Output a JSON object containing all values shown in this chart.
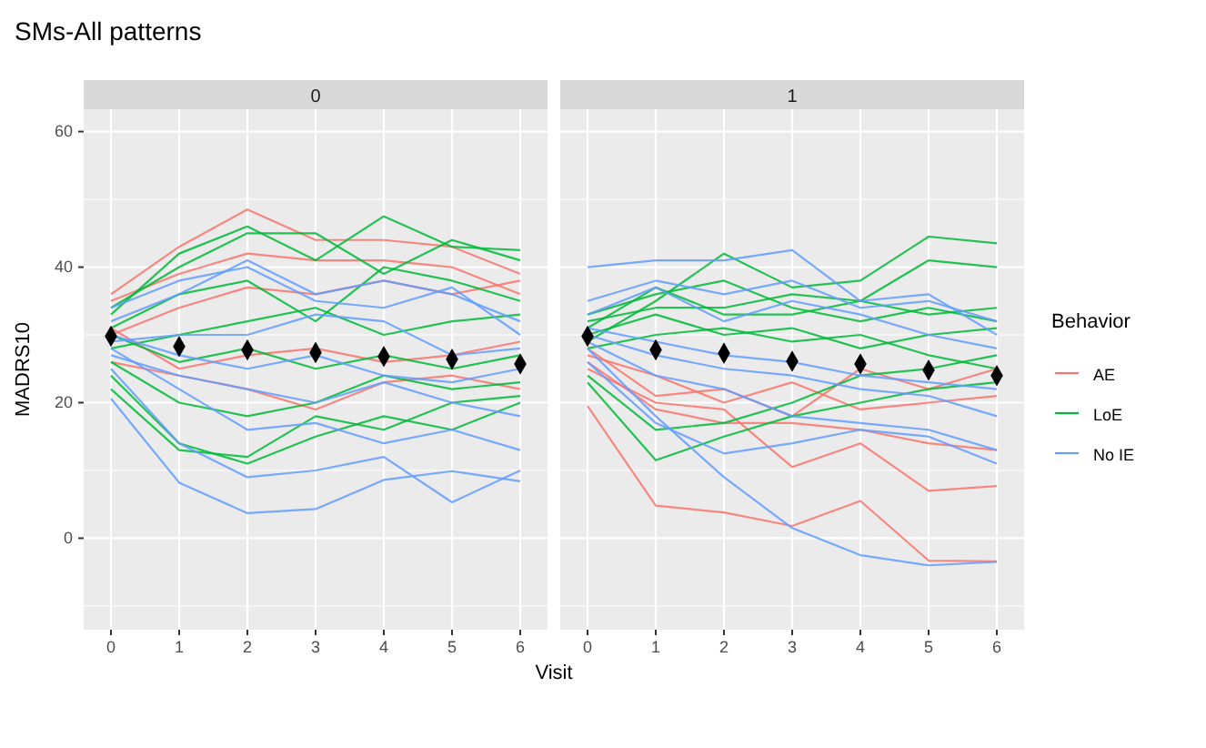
{
  "chart_data": [
    {
      "type": "line",
      "title": "SMs-All patterns",
      "subtitle": "0",
      "xlabel": "Visit",
      "ylabel": "MADRS10",
      "x": [
        0,
        1,
        2,
        3,
        4,
        5,
        6
      ],
      "xlim": [
        -0.4,
        6.4
      ],
      "xticks": [
        0,
        1,
        2,
        3,
        4,
        5,
        6
      ],
      "ylim": [
        -13.5,
        63.3
      ],
      "yticks": [
        0,
        20,
        40,
        60
      ],
      "grid": true,
      "legend": "right",
      "series": [
        {
          "name": "AE",
          "color": "#f8766d",
          "values": [
            36,
            43,
            48.5,
            44,
            44,
            43,
            39
          ]
        },
        {
          "color": "#f8766d",
          "values": [
            35,
            39,
            42,
            41,
            41,
            40,
            36
          ]
        },
        {
          "color": "#f8766d",
          "values": [
            30,
            34,
            37,
            36,
            38,
            36,
            38
          ]
        },
        {
          "color": "#f8766d",
          "values": [
            26,
            24,
            22,
            19,
            23,
            24,
            22
          ]
        },
        {
          "color": "#f8766d",
          "values": [
            31,
            25,
            27,
            28,
            26,
            27,
            29
          ]
        },
        {
          "name": "LoE",
          "color": "#00ba38",
          "values": [
            33,
            42,
            46,
            41,
            47.5,
            43,
            42.5
          ]
        },
        {
          "color": "#00ba38",
          "values": [
            34,
            40,
            45,
            45,
            39,
            44,
            41
          ]
        },
        {
          "color": "#00ba38",
          "values": [
            31,
            36,
            38,
            32,
            40,
            38,
            35
          ]
        },
        {
          "color": "#00ba38",
          "values": [
            28,
            30,
            32,
            34,
            30,
            32,
            33
          ]
        },
        {
          "color": "#00ba38",
          "values": [
            24,
            14,
            11,
            15,
            18,
            16,
            20
          ]
        },
        {
          "color": "#00ba38",
          "values": [
            26,
            20,
            18,
            20,
            24,
            22,
            23
          ]
        },
        {
          "color": "#00ba38",
          "values": [
            30,
            26,
            28,
            25,
            27,
            25,
            27
          ]
        },
        {
          "color": "#00ba38",
          "values": [
            22,
            13,
            12,
            18,
            16,
            20,
            21
          ]
        },
        {
          "name": "No IE",
          "color": "#619cff",
          "values": [
            20.6,
            8.2,
            3.7,
            4.3,
            8.6,
            9.9,
            8.4
          ]
        },
        {
          "color": "#619cff",
          "values": [
            25,
            14,
            9,
            10,
            12,
            5.3,
            10
          ]
        },
        {
          "color": "#619cff",
          "values": [
            32,
            36,
            41,
            36,
            38,
            36,
            32
          ]
        },
        {
          "color": "#619cff",
          "values": [
            29,
            30,
            30,
            33,
            32,
            27,
            28
          ]
        },
        {
          "color": "#619cff",
          "values": [
            27,
            24,
            22,
            20,
            23,
            20,
            18
          ]
        },
        {
          "color": "#619cff",
          "values": [
            30,
            27,
            25,
            27,
            24,
            23,
            25
          ]
        },
        {
          "color": "#619cff",
          "values": [
            28,
            22,
            16,
            17,
            14,
            16,
            13
          ]
        },
        {
          "color": "#619cff",
          "values": [
            34,
            38,
            40,
            35,
            34,
            37,
            30
          ]
        },
        {
          "type": "scatter",
          "marker": "diamond",
          "color": "#000000",
          "values": [
            29.8,
            28.3,
            27.8,
            27.4,
            26.8,
            26.4,
            25.7
          ]
        }
      ]
    },
    {
      "type": "line",
      "subtitle": "1",
      "legend_title": "Behavior",
      "x": [
        0,
        1,
        2,
        3,
        4,
        5,
        6
      ],
      "xlim": [
        -0.4,
        6.4
      ],
      "xticks": [
        0,
        1,
        2,
        3,
        4,
        5,
        6
      ],
      "ylim": [
        -13.5,
        63.3
      ],
      "yticks": [
        0,
        20,
        40,
        60
      ],
      "grid": true,
      "legend": "right",
      "tick_labels": "x",
      "series": [
        {
          "name": "AE",
          "color": "#f8766d",
          "values": [
            19.5,
            4.8,
            3.8,
            1.8,
            5.5,
            -3.3,
            -3.4
          ]
        },
        {
          "color": "#f8766d",
          "values": [
            25,
            20,
            19,
            10.5,
            14,
            7,
            7.7
          ]
        },
        {
          "color": "#f8766d",
          "values": [
            28,
            21,
            22,
            18,
            25,
            22,
            25
          ]
        },
        {
          "color": "#f8766d",
          "values": [
            26,
            19,
            17,
            17,
            16,
            14,
            13
          ]
        },
        {
          "color": "#f8766d",
          "values": [
            27,
            24,
            20,
            23,
            19,
            20,
            21
          ]
        },
        {
          "name": "LoE",
          "color": "#00ba38",
          "values": [
            29,
            35,
            42,
            37,
            38,
            44.5,
            43.5
          ]
        },
        {
          "color": "#00ba38",
          "values": [
            32,
            34,
            34,
            36,
            35,
            41,
            40
          ]
        },
        {
          "color": "#00ba38",
          "values": [
            31,
            37,
            33,
            33,
            35,
            33,
            34
          ]
        },
        {
          "color": "#00ba38",
          "values": [
            23,
            11.5,
            15,
            18,
            20,
            22,
            23
          ]
        },
        {
          "color": "#00ba38",
          "values": [
            28,
            30,
            31,
            29,
            30,
            27,
            25
          ]
        },
        {
          "color": "#00ba38",
          "values": [
            33,
            36,
            38,
            34,
            32,
            34,
            32
          ]
        },
        {
          "color": "#00ba38",
          "values": [
            24,
            16,
            17,
            20,
            24,
            25,
            27
          ]
        },
        {
          "color": "#00ba38",
          "values": [
            30,
            33,
            30,
            31,
            28,
            30,
            31
          ]
        },
        {
          "name": "No IE",
          "color": "#619cff",
          "values": [
            40,
            41,
            41,
            42.5,
            35,
            36,
            30
          ]
        },
        {
          "color": "#619cff",
          "values": [
            28,
            18,
            9,
            1.5,
            -2.5,
            -4,
            -3.5
          ]
        },
        {
          "color": "#619cff",
          "values": [
            26,
            17,
            12.5,
            14,
            16,
            15,
            11
          ]
        },
        {
          "color": "#619cff",
          "values": [
            33,
            37,
            32,
            35,
            33,
            30,
            28
          ]
        },
        {
          "color": "#619cff",
          "values": [
            30,
            27,
            25,
            24,
            22,
            21,
            18
          ]
        },
        {
          "color": "#619cff",
          "values": [
            35,
            38,
            36,
            38,
            34,
            35,
            32
          ]
        },
        {
          "color": "#619cff",
          "values": [
            29,
            24,
            22,
            18,
            17,
            16,
            13
          ]
        },
        {
          "color": "#619cff",
          "values": [
            31,
            29,
            27,
            26,
            24,
            23,
            22
          ]
        },
        {
          "type": "scatter",
          "marker": "diamond",
          "color": "#000000",
          "values": [
            29.8,
            27.8,
            27.3,
            26.1,
            25.7,
            24.8,
            24.0
          ]
        }
      ]
    }
  ]
}
